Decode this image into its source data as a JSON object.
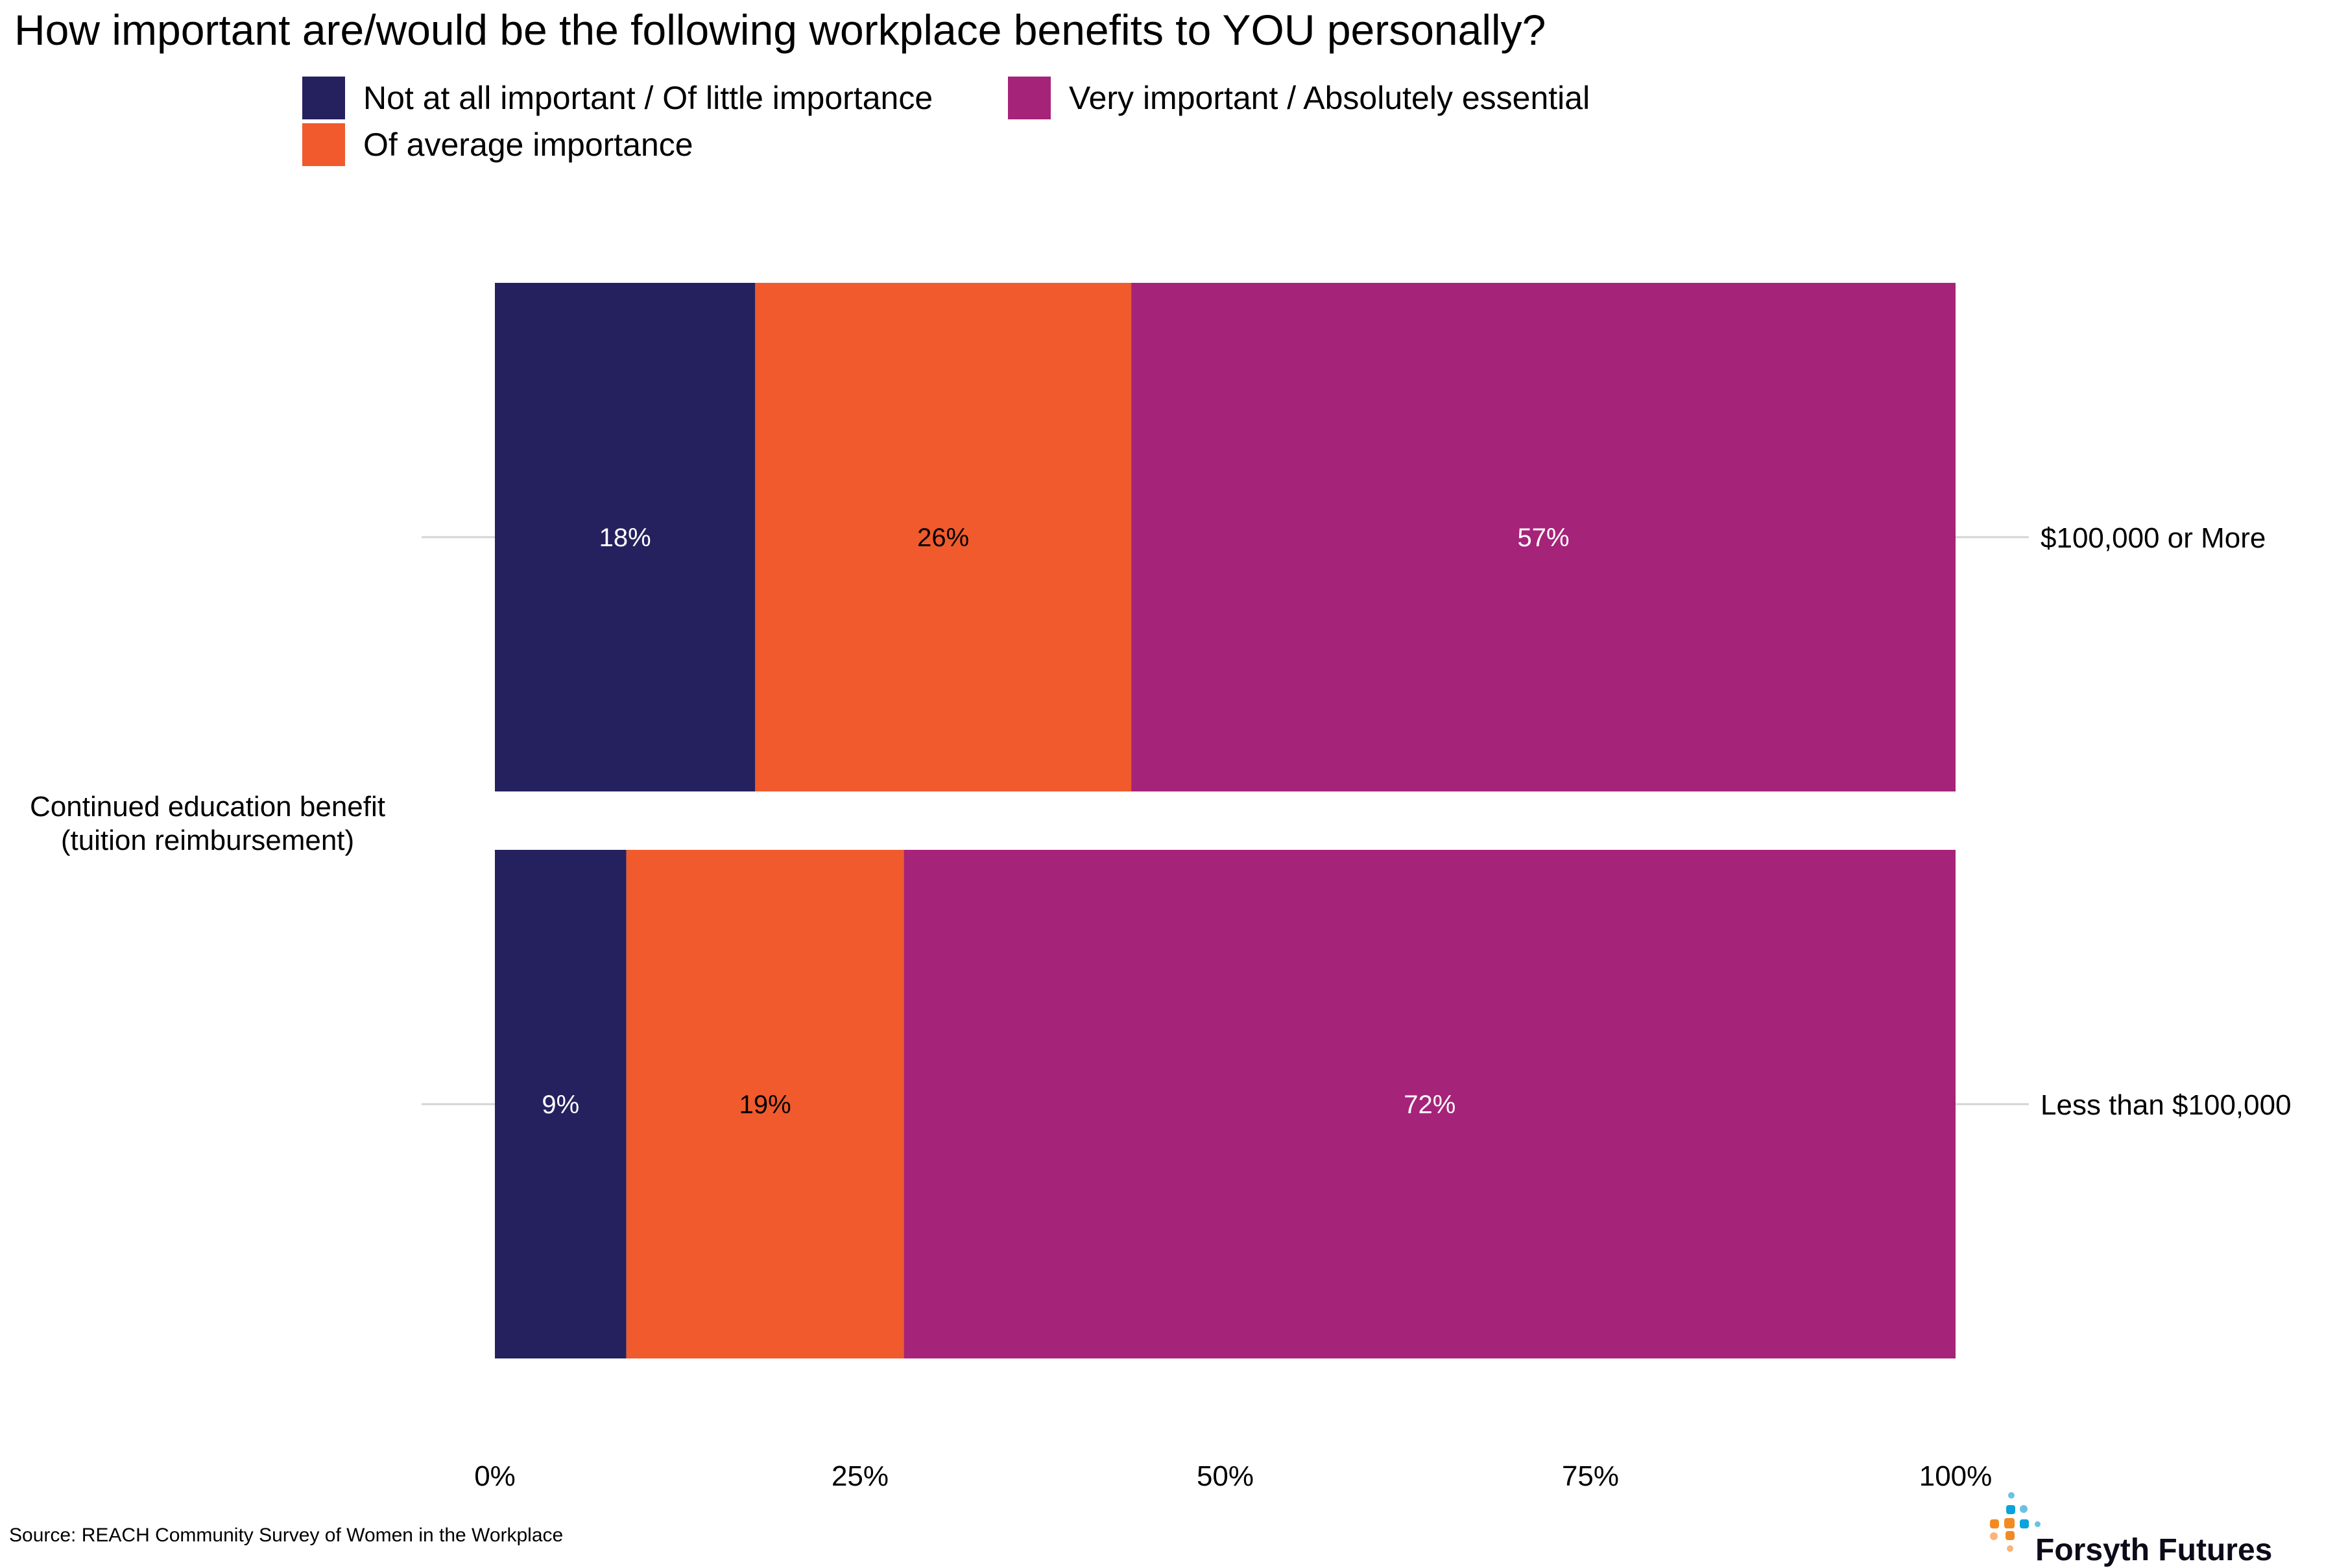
{
  "chart_data": {
    "type": "bar",
    "orientation": "horizontal",
    "stacked": true,
    "title": "How important are/would be the following workplace benefits to YOU personally?",
    "category": "Continued education benefit\n(tuition reimbursement)",
    "category_lines": [
      "Continued education benefit",
      "(tuition reimbursement)"
    ],
    "groups": [
      "$100,000 or More",
      "Less than $100,000"
    ],
    "series": [
      {
        "name": "Not at all important / Of little importance",
        "color": "#25215F",
        "label_color": "#ffffff",
        "values": [
          18,
          9
        ],
        "labels": [
          "18%",
          "9%"
        ]
      },
      {
        "name": "Of average importance",
        "color": "#F05A2D",
        "label_color": "#000000",
        "values": [
          26,
          19
        ],
        "labels": [
          "26%",
          "19%"
        ]
      },
      {
        "name": "Very important / Absolutely essential",
        "color": "#A6237A",
        "label_color": "#ffffff",
        "values": [
          57,
          72
        ],
        "labels": [
          "57%",
          "72%"
        ]
      }
    ],
    "xlim": [
      0,
      100
    ],
    "xticks": [
      0,
      25,
      50,
      75,
      100
    ],
    "xtick_labels": [
      "0%",
      "25%",
      "50%",
      "75%",
      "100%"
    ],
    "xlabel": "",
    "ylabel": "",
    "grid": false,
    "legend_position": "top-left",
    "legend_order": [
      0,
      2,
      1
    ]
  },
  "source": "Source: REACH Community Survey of Women in the Workplace",
  "logo": {
    "text": "Forsyth Futures",
    "colors": {
      "blue": "#0AA4DA",
      "light_blue": "#6CC0E5",
      "orange": "#F28A24",
      "light_orange": "#F9B47A"
    }
  }
}
